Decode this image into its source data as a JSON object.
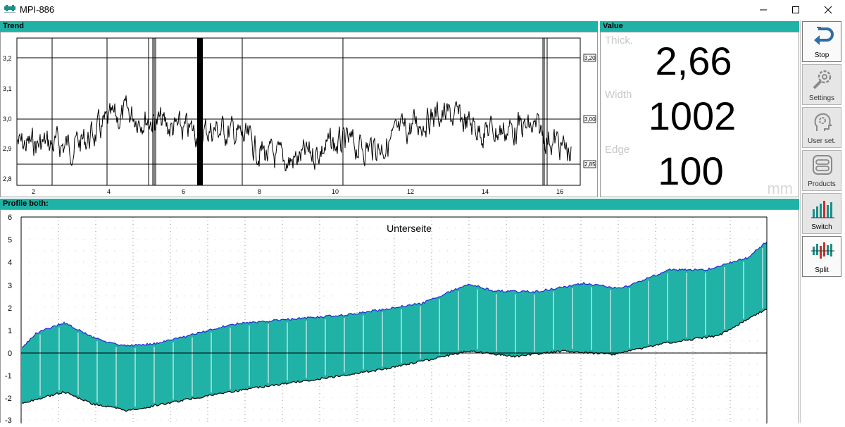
{
  "window": {
    "title": "MPI-886"
  },
  "trend": {
    "header": "Trend",
    "y_ticks": [
      "3,2",
      "3,1",
      "3,0",
      "2,9",
      "2,8"
    ],
    "x_ticks": [
      "2",
      "4",
      "6",
      "8",
      "10",
      "12",
      "14",
      "16"
    ],
    "ref_labels": [
      "3,20",
      "3,00",
      "2,85"
    ]
  },
  "value": {
    "header": "Value",
    "thick_label": "Thick.",
    "thick_value": "2,66",
    "width_label": "Width",
    "width_value": "1002",
    "edge_label": "Edge",
    "edge_value": "100",
    "unit": "mm"
  },
  "profile": {
    "header": "Profile both:",
    "title": "Unterseite",
    "y_ticks": [
      "6",
      "5",
      "4",
      "3",
      "2",
      "1",
      "0",
      "-1",
      "-2",
      "-3"
    ]
  },
  "sidebar": {
    "items": [
      {
        "label": "Stop",
        "icon": "return-arrow-icon"
      },
      {
        "label": "Settings",
        "icon": "wrench-gear-icon"
      },
      {
        "label": "User set.",
        "icon": "head-gear-icon"
      },
      {
        "label": "Products",
        "icon": "toggle-switches-icon"
      },
      {
        "label": "Switch",
        "icon": "bar-chart-icon"
      },
      {
        "label": "Split",
        "icon": "split-bars-icon"
      }
    ]
  },
  "colors": {
    "accent": "#20b2a6",
    "profile_fill": "#20b2a6",
    "upper_line": "#1f2bd6"
  }
}
